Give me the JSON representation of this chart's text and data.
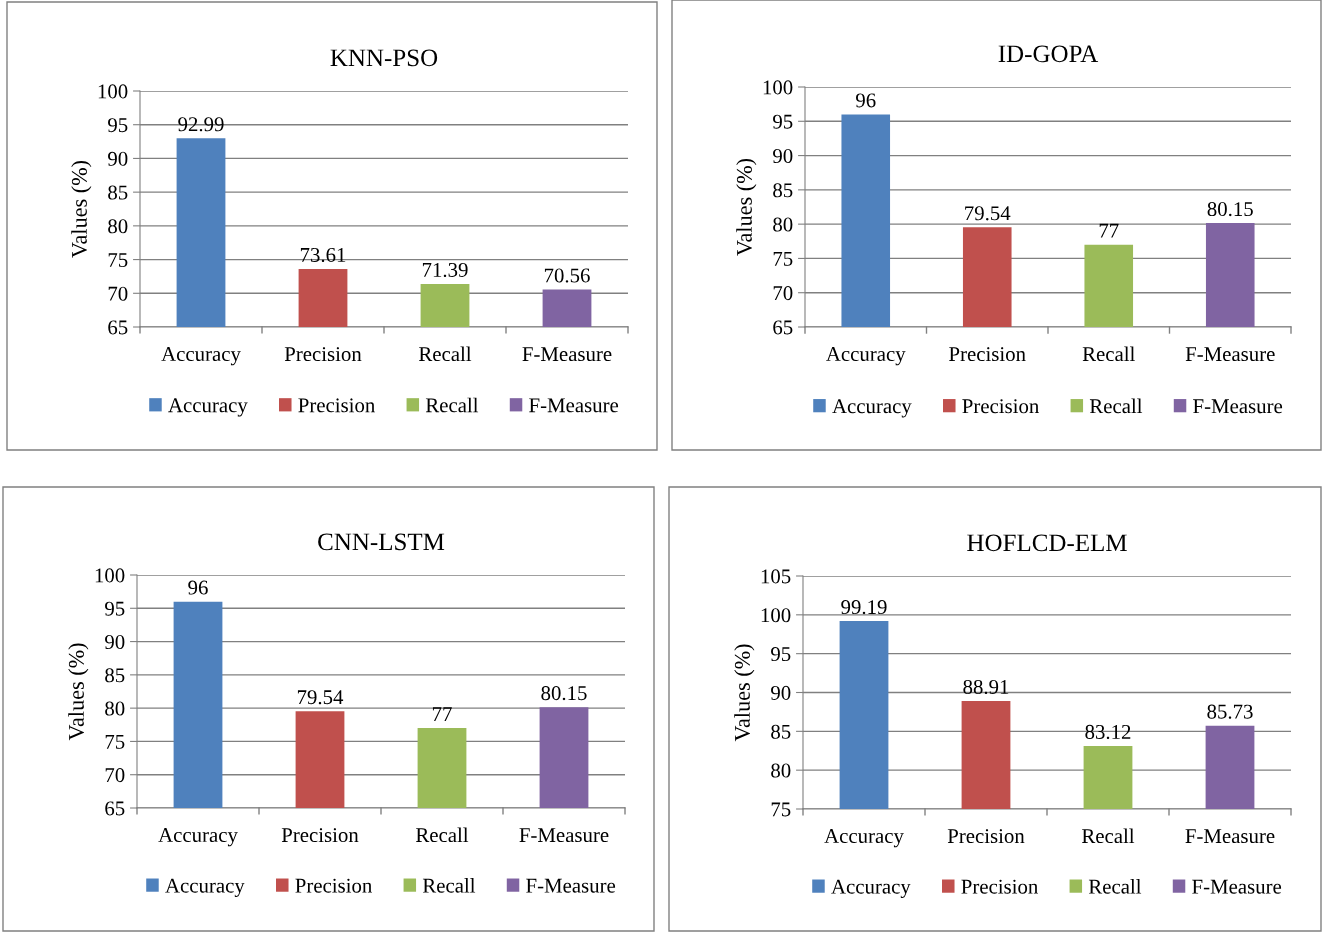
{
  "chart_data": [
    {
      "type": "bar",
      "title": "KNN-PSO",
      "ylabel": "Values (%)",
      "categories": [
        "Accuracy",
        "Precision",
        "Recall",
        "F-Measure"
      ],
      "series": [
        {
          "name": "Accuracy",
          "color": "#4f81bd",
          "values": [
            92.99,
            null,
            null,
            null
          ]
        },
        {
          "name": "Precision",
          "color": "#c0504d",
          "values": [
            null,
            73.61,
            null,
            null
          ]
        },
        {
          "name": "Recall",
          "color": "#9bbb59",
          "values": [
            null,
            null,
            71.39,
            null
          ]
        },
        {
          "name": "F-Measure",
          "color": "#8064a2",
          "values": [
            null,
            null,
            null,
            70.56
          ]
        }
      ],
      "ylim": [
        65,
        100
      ],
      "yticks": [
        65,
        70,
        75,
        80,
        85,
        90,
        95,
        100
      ],
      "grid": "y",
      "legend": "bottom",
      "data_labels": true
    },
    {
      "type": "bar",
      "title": "ID-GOPA",
      "ylabel": "Values (%)",
      "categories": [
        "Accuracy",
        "Precision",
        "Recall",
        "F-Measure"
      ],
      "series": [
        {
          "name": "Accuracy",
          "color": "#4f81bd",
          "values": [
            96,
            null,
            null,
            null
          ]
        },
        {
          "name": "Precision",
          "color": "#c0504d",
          "values": [
            null,
            79.54,
            null,
            null
          ]
        },
        {
          "name": "Recall",
          "color": "#9bbb59",
          "values": [
            null,
            null,
            77,
            null
          ]
        },
        {
          "name": "F-Measure",
          "color": "#8064a2",
          "values": [
            null,
            null,
            null,
            80.15
          ]
        }
      ],
      "ylim": [
        65,
        100
      ],
      "yticks": [
        65,
        70,
        75,
        80,
        85,
        90,
        95,
        100
      ],
      "grid": "y",
      "legend": "bottom",
      "data_labels": true
    },
    {
      "type": "bar",
      "title": "CNN-LSTM",
      "ylabel": "Values (%)",
      "categories": [
        "Accuracy",
        "Precision",
        "Recall",
        "F-Measure"
      ],
      "series": [
        {
          "name": "Accuracy",
          "color": "#4f81bd",
          "values": [
            96,
            null,
            null,
            null
          ]
        },
        {
          "name": "Precision",
          "color": "#c0504d",
          "values": [
            null,
            79.54,
            null,
            null
          ]
        },
        {
          "name": "Recall",
          "color": "#9bbb59",
          "values": [
            null,
            null,
            77,
            null
          ]
        },
        {
          "name": "F-Measure",
          "color": "#8064a2",
          "values": [
            null,
            null,
            null,
            80.15
          ]
        }
      ],
      "ylim": [
        65,
        100
      ],
      "yticks": [
        65,
        70,
        75,
        80,
        85,
        90,
        95,
        100
      ],
      "grid": "y",
      "legend": "bottom",
      "data_labels": true
    },
    {
      "type": "bar",
      "title": "HOFLCD-ELM",
      "ylabel": "Values (%)",
      "categories": [
        "Accuracy",
        "Precision",
        "Recall",
        "F-Measure"
      ],
      "series": [
        {
          "name": "Accuracy",
          "color": "#4f81bd",
          "values": [
            99.19,
            null,
            null,
            null
          ]
        },
        {
          "name": "Precision",
          "color": "#c0504d",
          "values": [
            null,
            88.91,
            null,
            null
          ]
        },
        {
          "name": "Recall",
          "color": "#9bbb59",
          "values": [
            null,
            null,
            83.12,
            null
          ]
        },
        {
          "name": "F-Measure",
          "color": "#8064a2",
          "values": [
            null,
            null,
            null,
            85.73
          ]
        }
      ],
      "ylim": [
        75,
        105
      ],
      "yticks": [
        75,
        80,
        85,
        90,
        95,
        100,
        105
      ],
      "grid": "y",
      "legend": "bottom",
      "data_labels": true
    }
  ]
}
